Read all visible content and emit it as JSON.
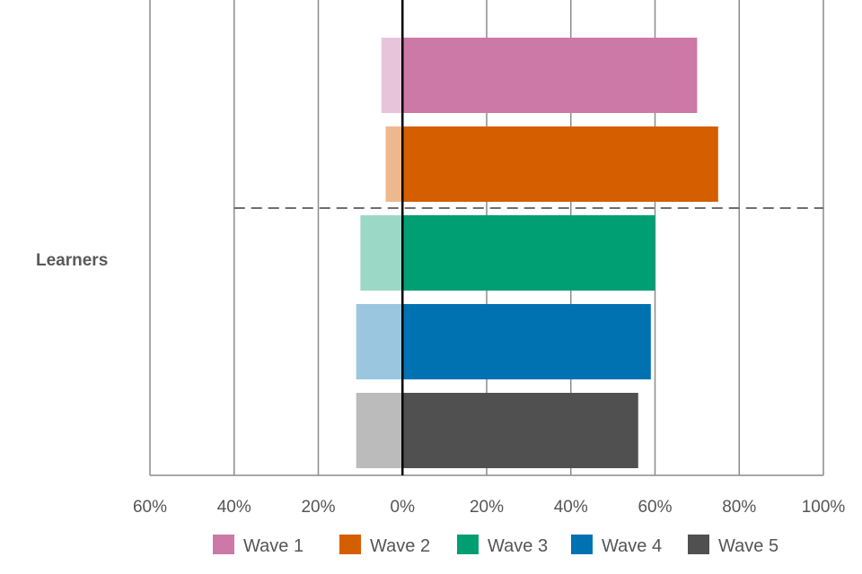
{
  "chart_data": {
    "type": "bar",
    "orientation": "horizontal",
    "stacked": "diverging",
    "categories": [
      "Learners"
    ],
    "x_tick_labels": [
      "60%",
      "40%",
      "20%",
      "0%",
      "20%",
      "40%",
      "60%",
      "80%",
      "100%"
    ],
    "xlim": [
      -60,
      100
    ],
    "grid": true,
    "legend_position": "bottom",
    "series": [
      {
        "name": "Wave 1",
        "negative": 5,
        "positive": 70,
        "color": "#CC79A7",
        "light_color": "#E8C4DA"
      },
      {
        "name": "Wave 2",
        "negative": 4,
        "positive": 75,
        "color": "#D55E00",
        "light_color": "#EDB88E"
      },
      {
        "name": "Wave 3",
        "negative": 10,
        "positive": 60,
        "color": "#009E73",
        "light_color": "#9CD8C6"
      },
      {
        "name": "Wave 4",
        "negative": 11,
        "positive": 59,
        "color": "#0072B2",
        "light_color": "#9BC6E0"
      },
      {
        "name": "Wave 5",
        "negative": 11,
        "positive": 56,
        "color": "#505050",
        "light_color": "#BBBBBB"
      }
    ]
  }
}
